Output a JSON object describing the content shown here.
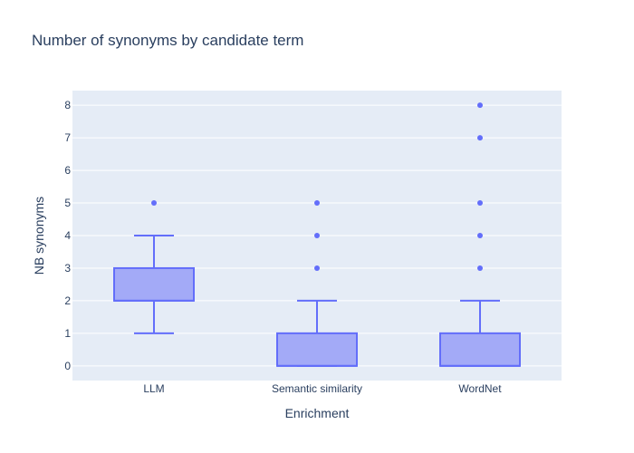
{
  "chart_data": {
    "type": "box",
    "title": "Number of synonyms by candidate term",
    "xlabel": "Enrichment",
    "ylabel": "NB synonyms",
    "categories": [
      "LLM",
      "Semantic similarity",
      "WordNet"
    ],
    "ylim": [
      -0.45,
      8.45
    ],
    "yticks": [
      0,
      1,
      2,
      3,
      4,
      5,
      6,
      7,
      8
    ],
    "grid": true,
    "legend": "none",
    "colors": {
      "box_fill": "#a3aaf7",
      "box_line": "#636efa",
      "plot_bg": "#e5ecf6",
      "grid": "#ffffff"
    },
    "boxes": [
      {
        "category": "LLM",
        "min": 1,
        "q1": 2,
        "median": 2,
        "q3": 3,
        "max": 4,
        "outliers": [
          5
        ]
      },
      {
        "category": "Semantic similarity",
        "min": 0,
        "q1": 0,
        "median": 0,
        "q3": 1,
        "max": 2,
        "outliers": [
          3,
          4,
          5
        ]
      },
      {
        "category": "WordNet",
        "min": 0,
        "q1": 0,
        "median": 0,
        "q3": 1,
        "max": 2,
        "outliers": [
          3,
          4,
          5,
          7,
          8
        ]
      }
    ]
  }
}
